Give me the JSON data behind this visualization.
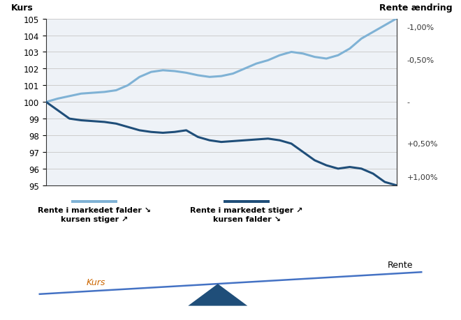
{
  "title_left": "Kurs",
  "title_right": "Rente ændring",
  "ylim_left": [
    95,
    105
  ],
  "yticks_left": [
    95,
    96,
    97,
    98,
    99,
    100,
    101,
    102,
    103,
    104,
    105
  ],
  "yticks_right_labels": [
    "-1,00%",
    "-0,50%",
    "-",
    "+0,50%",
    "+1,00%"
  ],
  "yticks_right_vals": [
    104.5,
    102.5,
    100.0,
    97.5,
    95.5
  ],
  "light_line_color": "#7fb2d5",
  "dark_line_color": "#1f4e79",
  "grid_color": "#cccccc",
  "plot_bg": "#eef2f7",
  "label1_line_top": "Rente i markedet falder ↘",
  "label1_line_bot": "kursen stiger ↗",
  "label2_line_top": "Rente i markedet stiger ↗",
  "label2_line_bot": "kursen falder ↘",
  "seesaw_color": "#4472c4",
  "triangle_color": "#1f4e79",
  "kurs_label": "Kurs",
  "rente_label": "Rente",
  "kurs_label_color": "#cc6600",
  "rente_label_color": "#000000",
  "light_x": [
    0,
    1,
    2,
    3,
    4,
    5,
    6,
    7,
    8,
    9,
    10,
    11,
    12,
    13,
    14,
    15,
    16,
    17,
    18,
    19,
    20,
    21,
    22,
    23,
    24,
    25,
    26,
    27,
    28,
    29,
    30
  ],
  "light_y": [
    100.0,
    100.2,
    100.35,
    100.5,
    100.55,
    100.6,
    100.7,
    101.0,
    101.5,
    101.8,
    101.9,
    101.85,
    101.75,
    101.6,
    101.5,
    101.55,
    101.7,
    102.0,
    102.3,
    102.5,
    102.8,
    103.0,
    102.9,
    102.7,
    102.6,
    102.8,
    103.2,
    103.8,
    104.2,
    104.6,
    105.0
  ],
  "dark_x": [
    0,
    1,
    2,
    3,
    4,
    5,
    6,
    7,
    8,
    9,
    10,
    11,
    12,
    13,
    14,
    15,
    16,
    17,
    18,
    19,
    20,
    21,
    22,
    23,
    24,
    25,
    26,
    27,
    28,
    29,
    30
  ],
  "dark_y": [
    100.0,
    99.5,
    99.0,
    98.9,
    98.85,
    98.8,
    98.7,
    98.5,
    98.3,
    98.2,
    98.15,
    98.2,
    98.3,
    97.9,
    97.7,
    97.6,
    97.65,
    97.7,
    97.75,
    97.8,
    97.7,
    97.5,
    97.0,
    96.5,
    96.2,
    96.0,
    96.1,
    96.0,
    95.7,
    95.2,
    95.0
  ]
}
